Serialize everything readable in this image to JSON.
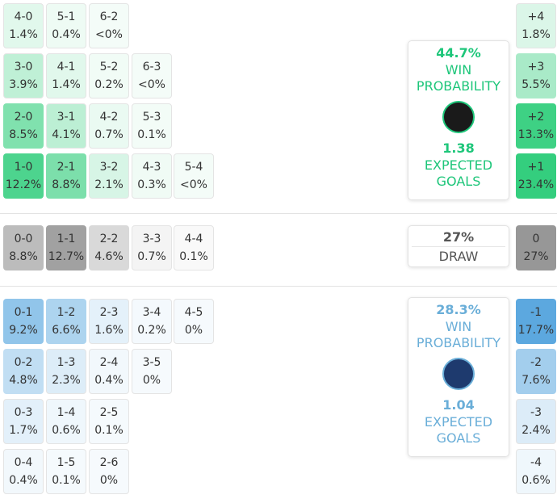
{
  "home": {
    "color": "#1ec970",
    "accent": "#1ec67a",
    "rows": [
      [
        {
          "score": "4-0",
          "pct": "1.4%"
        },
        {
          "score": "5-1",
          "pct": "0.4%"
        },
        {
          "score": "6-2",
          "pct": "<0%"
        }
      ],
      [
        {
          "score": "3-0",
          "pct": "3.9%"
        },
        {
          "score": "4-1",
          "pct": "1.4%"
        },
        {
          "score": "5-2",
          "pct": "0.2%"
        },
        {
          "score": "6-3",
          "pct": "<0%"
        }
      ],
      [
        {
          "score": "2-0",
          "pct": "8.5%"
        },
        {
          "score": "3-1",
          "pct": "4.1%"
        },
        {
          "score": "4-2",
          "pct": "0.7%"
        },
        {
          "score": "5-3",
          "pct": "0.1%"
        }
      ],
      [
        {
          "score": "1-0",
          "pct": "12.2%"
        },
        {
          "score": "2-1",
          "pct": "8.8%"
        },
        {
          "score": "3-2",
          "pct": "2.1%"
        },
        {
          "score": "4-3",
          "pct": "0.3%"
        },
        {
          "score": "5-4",
          "pct": "<0%"
        }
      ]
    ],
    "margins": [
      {
        "score": "+4",
        "pct": "1.8%"
      },
      {
        "score": "+3",
        "pct": "5.5%"
      },
      {
        "score": "+2",
        "pct": "13.3%"
      },
      {
        "score": "+1",
        "pct": "23.4%"
      }
    ],
    "summary": {
      "win_pct": "44.7%",
      "win_label": "WIN PROBABILITY",
      "xg": "1.38",
      "xg_label": "EXPECTED GOALS"
    }
  },
  "draw": {
    "color": "#8c8c8c",
    "accent": "#555555",
    "rows": [
      [
        {
          "score": "0-0",
          "pct": "8.8%"
        },
        {
          "score": "1-1",
          "pct": "12.7%"
        },
        {
          "score": "2-2",
          "pct": "4.6%"
        },
        {
          "score": "3-3",
          "pct": "0.7%"
        },
        {
          "score": "4-4",
          "pct": "0.1%"
        }
      ]
    ],
    "margins": [
      {
        "score": "0",
        "pct": "27%"
      }
    ],
    "summary": {
      "pct": "27%",
      "label": "DRAW"
    }
  },
  "away": {
    "color": "#4a9fdc",
    "accent": "#6aaed8",
    "rows": [
      [
        {
          "score": "0-1",
          "pct": "9.2%"
        },
        {
          "score": "1-2",
          "pct": "6.6%"
        },
        {
          "score": "2-3",
          "pct": "1.6%"
        },
        {
          "score": "3-4",
          "pct": "0.2%"
        },
        {
          "score": "4-5",
          "pct": "0%"
        }
      ],
      [
        {
          "score": "0-2",
          "pct": "4.8%"
        },
        {
          "score": "1-3",
          "pct": "2.3%"
        },
        {
          "score": "2-4",
          "pct": "0.4%"
        },
        {
          "score": "3-5",
          "pct": "0%"
        }
      ],
      [
        {
          "score": "0-3",
          "pct": "1.7%"
        },
        {
          "score": "1-4",
          "pct": "0.6%"
        },
        {
          "score": "2-5",
          "pct": "0.1%"
        }
      ],
      [
        {
          "score": "0-4",
          "pct": "0.4%"
        },
        {
          "score": "1-5",
          "pct": "0.1%"
        },
        {
          "score": "2-6",
          "pct": "0%"
        }
      ]
    ],
    "margins": [
      {
        "score": "-1",
        "pct": "17.7%"
      },
      {
        "score": "-2",
        "pct": "7.6%"
      },
      {
        "score": "-3",
        "pct": "2.4%"
      },
      {
        "score": "-4",
        "pct": "0.6%"
      }
    ],
    "summary": {
      "win_pct": "28.3%",
      "win_label": "WIN PROBABILITY",
      "xg": "1.04",
      "xg_label": "EXPECTED GOALS"
    }
  }
}
